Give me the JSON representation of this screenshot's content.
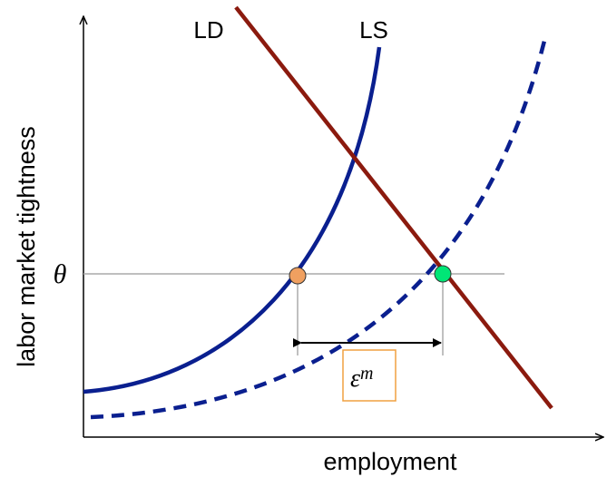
{
  "labels": {
    "ld": "LD",
    "ls": "LS",
    "theta": "θ",
    "y_axis": "labor market tightness",
    "x_axis": "employment",
    "gap_symbol": "ε",
    "gap_superscript": "m"
  }
}
